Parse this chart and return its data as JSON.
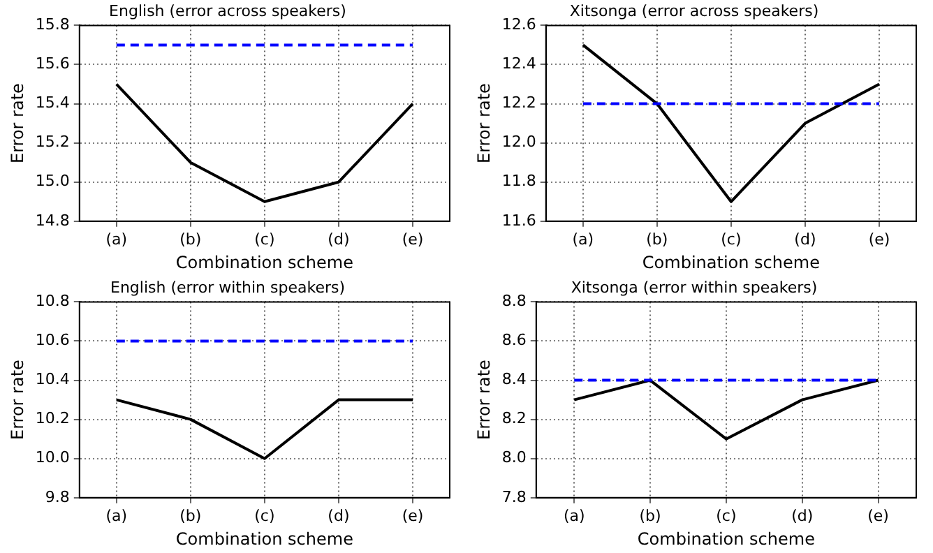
{
  "chart_data": [
    {
      "type": "line",
      "title": "English (error across speakers)",
      "xlabel": "Combination scheme",
      "ylabel": "Error rate",
      "categories": [
        "(a)",
        "(b)",
        "(c)",
        "(d)",
        "(e)"
      ],
      "series": [
        {
          "color": "#000000",
          "values": [
            15.5,
            15.1,
            14.9,
            15.0,
            15.4
          ]
        }
      ],
      "ylim": [
        14.8,
        15.8
      ],
      "yticks": [
        14.8,
        {
          "value": 15,
          "label": "15.0"
        },
        15.2,
        15.4,
        15.6,
        15.8
      ],
      "grid": true,
      "marker": "none",
      "line_style": "solid",
      "ref_lines": [
        {
          "axis": "y",
          "value": 15.7,
          "color": "#0000ff",
          "line_style": "dashed"
        }
      ]
    },
    {
      "type": "line",
      "title": "Xitsonga (error across speakers)",
      "xlabel": "Combination scheme",
      "ylabel": "Error rate",
      "categories": [
        "(a)",
        "(b)",
        "(c)",
        "(d)",
        "(e)"
      ],
      "series": [
        {
          "color": "#000000",
          "values": [
            12.5,
            12.2,
            11.7,
            12.1,
            12.3
          ]
        }
      ],
      "ylim": [
        11.6,
        12.6
      ],
      "yticks": [
        11.6,
        11.8,
        {
          "value": 12,
          "label": "12.0"
        },
        12.2,
        12.4,
        12.6
      ],
      "grid": true,
      "marker": "none",
      "line_style": "solid",
      "ref_lines": [
        {
          "axis": "y",
          "value": 12.2,
          "color": "#0000ff",
          "line_style": "dashed"
        }
      ]
    },
    {
      "type": "line",
      "title": "English (error within speakers)",
      "xlabel": "Combination scheme",
      "ylabel": "Error rate",
      "categories": [
        "(a)",
        "(b)",
        "(c)",
        "(d)",
        "(e)"
      ],
      "series": [
        {
          "color": "#000000",
          "values": [
            10.3,
            10.2,
            10.0,
            10.3,
            10.3
          ]
        }
      ],
      "ylim": [
        9.8,
        10.8
      ],
      "yticks": [
        9.8,
        {
          "value": 10,
          "label": "10.0"
        },
        10.2,
        10.4,
        10.6,
        10.8
      ],
      "grid": true,
      "marker": "none",
      "line_style": "solid",
      "ref_lines": [
        {
          "axis": "y",
          "value": 10.6,
          "color": "#0000ff",
          "line_style": "dashed"
        }
      ]
    },
    {
      "type": "line",
      "title": "Xitsonga (error within speakers)",
      "xlabel": "Combination scheme",
      "ylabel": "Error rate",
      "categories": [
        "(a)",
        "(b)",
        "(c)",
        "(d)",
        "(e)"
      ],
      "series": [
        {
          "color": "#000000",
          "values": [
            8.3,
            8.4,
            8.1,
            8.3,
            8.4
          ]
        }
      ],
      "ylim": [
        7.8,
        8.8
      ],
      "yticks": [
        7.8,
        {
          "value": 8,
          "label": "8.0"
        },
        8.2,
        8.4,
        8.6,
        8.8
      ],
      "grid": true,
      "marker": "none",
      "line_style": "solid",
      "ref_lines": [
        {
          "axis": "y",
          "value": 8.4,
          "color": "#0000ff",
          "line_style": "dashed"
        }
      ]
    }
  ]
}
